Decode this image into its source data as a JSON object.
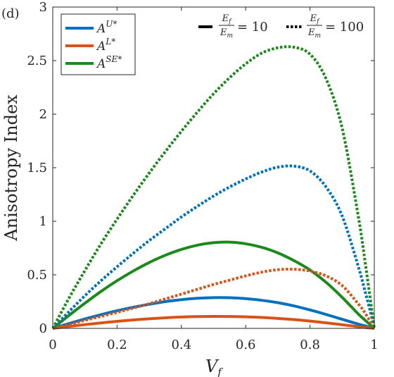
{
  "chart_data": {
    "type": "line",
    "panel_label": "(d)",
    "xlabel": "V",
    "xlabel_sub": "f",
    "ylabel": "Anisotropy Index",
    "xlim": [
      0,
      1
    ],
    "ylim": [
      0,
      3
    ],
    "xticks": [
      0,
      0.2,
      0.4,
      0.6,
      0.8,
      1
    ],
    "xtick_labels": [
      "0",
      "0.2",
      "0.4",
      "0.6",
      "0.8",
      "1"
    ],
    "yticks": [
      0,
      0.5,
      1,
      1.5,
      2,
      2.5,
      3
    ],
    "ytick_labels": [
      "0",
      "0.5",
      "1",
      "1.5",
      "2",
      "2.5",
      "3"
    ],
    "grid": false,
    "legend_position": "top-left",
    "legend": [
      {
        "base": "A",
        "sup": "U*",
        "color": "#0072BD"
      },
      {
        "base": "A",
        "sup": "L*",
        "color": "#D95319"
      },
      {
        "base": "A",
        "sup": "SE*",
        "color": "#1B8A1B"
      }
    ],
    "style_notes": [
      {
        "line": "solid",
        "num": "E",
        "num_sub": "f",
        "den": "E",
        "den_sub": "m",
        "value": "= 10"
      },
      {
        "line": "dotted",
        "num": "E",
        "num_sub": "f",
        "den": "E",
        "den_sub": "m",
        "value": "= 100"
      }
    ],
    "x": [
      0,
      0.05,
      0.1,
      0.15,
      0.2,
      0.25,
      0.3,
      0.35,
      0.4,
      0.45,
      0.5,
      0.55,
      0.6,
      0.65,
      0.7,
      0.75,
      0.8,
      0.85,
      0.9,
      0.95,
      0.97,
      0.99,
      1
    ],
    "series": [
      {
        "measure": "A^U*",
        "ratio": 10,
        "color": "#0072BD",
        "dash": "solid",
        "values": [
          0,
          0.045,
          0.088,
          0.128,
          0.165,
          0.197,
          0.225,
          0.25,
          0.268,
          0.281,
          0.287,
          0.286,
          0.278,
          0.262,
          0.24,
          0.21,
          0.172,
          0.13,
          0.085,
          0.04,
          0.024,
          0.008,
          0
        ]
      },
      {
        "measure": "A^L*",
        "ratio": 10,
        "color": "#D95319",
        "dash": "solid",
        "values": [
          0,
          0.018,
          0.035,
          0.051,
          0.066,
          0.079,
          0.09,
          0.099,
          0.106,
          0.11,
          0.112,
          0.111,
          0.108,
          0.102,
          0.093,
          0.082,
          0.068,
          0.052,
          0.034,
          0.016,
          0.009,
          0.003,
          0
        ]
      },
      {
        "measure": "A^SE*",
        "ratio": 10,
        "color": "#1B8A1B",
        "dash": "solid",
        "values": [
          0,
          0.12,
          0.235,
          0.345,
          0.445,
          0.535,
          0.615,
          0.683,
          0.737,
          0.777,
          0.8,
          0.805,
          0.79,
          0.757,
          0.705,
          0.633,
          0.545,
          0.43,
          0.29,
          0.135,
          0.08,
          0.027,
          0
        ]
      },
      {
        "measure": "A^U*",
        "ratio": 100,
        "color": "#0072BD",
        "dash": "dotted",
        "values": [
          0,
          0.155,
          0.305,
          0.445,
          0.575,
          0.7,
          0.82,
          0.93,
          1.04,
          1.14,
          1.235,
          1.32,
          1.395,
          1.46,
          1.505,
          1.515,
          1.47,
          1.32,
          1.05,
          0.58,
          0.36,
          0.13,
          0
        ]
      },
      {
        "measure": "A^L*",
        "ratio": 100,
        "color": "#D95319",
        "dash": "dotted",
        "values": [
          0,
          0.035,
          0.075,
          0.112,
          0.15,
          0.19,
          0.23,
          0.275,
          0.32,
          0.365,
          0.41,
          0.45,
          0.49,
          0.525,
          0.548,
          0.552,
          0.535,
          0.49,
          0.4,
          0.23,
          0.15,
          0.05,
          0
        ]
      },
      {
        "measure": "A^SE*",
        "ratio": 100,
        "color": "#1B8A1B",
        "dash": "dotted",
        "values": [
          0,
          0.28,
          0.54,
          0.79,
          1.02,
          1.24,
          1.45,
          1.65,
          1.84,
          2.02,
          2.19,
          2.34,
          2.47,
          2.57,
          2.62,
          2.625,
          2.56,
          2.33,
          1.87,
          1.05,
          0.65,
          0.22,
          0
        ]
      }
    ]
  }
}
